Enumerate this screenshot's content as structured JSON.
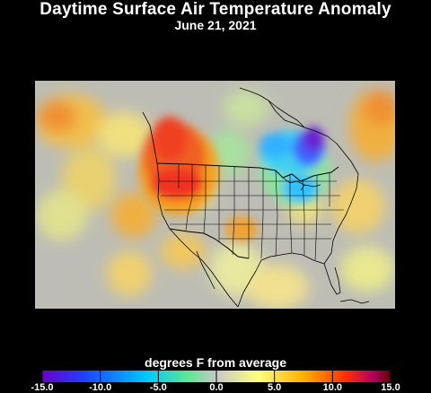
{
  "header": {
    "title": "Daytime Surface Air Temperature Anomaly",
    "date": "June 21, 2021"
  },
  "legend": {
    "label": "degrees F from average",
    "min": -15.0,
    "max": 15.0,
    "ticks": [
      "-15.0",
      "-10.0",
      "-5.0",
      "0.0",
      "5.0",
      "10.0",
      "15.0"
    ],
    "tick_values": [
      -15,
      -10,
      -5,
      0,
      5,
      10,
      15
    ],
    "colors": [
      "#6a00c8",
      "#1e40ff",
      "#00c8ff",
      "#60e890",
      "#c8c8c8",
      "#ffff80",
      "#ffb000",
      "#ff3000",
      "#b00060",
      "#600000"
    ]
  },
  "map": {
    "colors": {
      "neutral": "#bcbcb4",
      "ocean_neutral": "#c4c4b4",
      "warm_yellow": "#f0e070",
      "warm_orange": "#f4a020",
      "hot_red": "#f03020",
      "cool_green": "#90e0a0",
      "cool_cyan": "#30d0ff",
      "cool_blue": "#4060ff",
      "cold_purple": "#6820d0",
      "borders": "#000000"
    }
  }
}
